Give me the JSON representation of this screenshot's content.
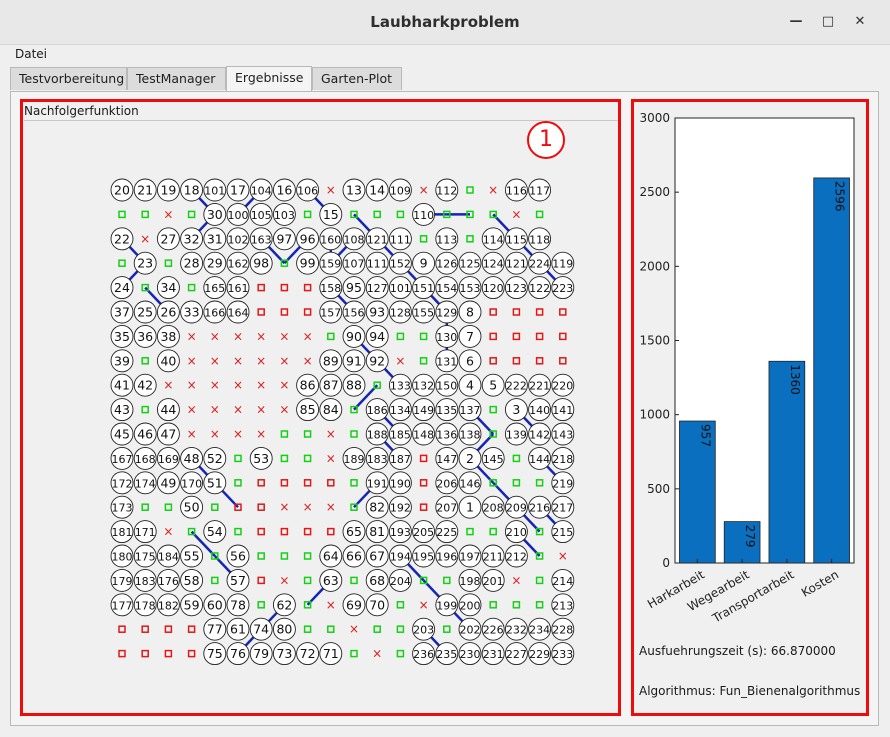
{
  "window": {
    "title": "Laubharkproblem",
    "minimize": "—",
    "maximize": "□",
    "close": "✕"
  },
  "menu": {
    "file": "Datei"
  },
  "tabs": [
    {
      "label": "Testvorbereitung",
      "active": false
    },
    {
      "label": "TestManager",
      "active": false
    },
    {
      "label": "Ergebnisse",
      "active": true
    },
    {
      "label": "Garten-Plot",
      "active": false
    }
  ],
  "left_panel": {
    "group_title": "Nachfolgerfunktion",
    "badge": "1"
  },
  "right_panel": {
    "badge": "2"
  },
  "grid": {
    "rows": [
      [
        "20",
        "21",
        "19",
        "18",
        "101",
        "17",
        "104",
        "16",
        "106",
        "x",
        "13",
        "14",
        "109",
        "x",
        "112",
        "g",
        "x",
        "116",
        "117"
      ],
      [
        "g",
        "g",
        "x",
        "g",
        "30",
        "100",
        "105",
        "103",
        "g",
        "15",
        "g",
        "g",
        "g",
        "110",
        "g",
        "g",
        "g",
        "x",
        "g"
      ],
      [
        "22",
        "x",
        "27",
        "32",
        "31",
        "102",
        "163",
        "97",
        "96",
        "160",
        "108",
        "121",
        "111",
        "g",
        "113",
        "g",
        "114",
        "115",
        "118"
      ],
      [
        "g",
        "23",
        "g",
        "28",
        "29",
        "162",
        "98",
        "g",
        "99",
        "159",
        "107",
        "111",
        "152",
        "9",
        "126",
        "125",
        "124",
        "121",
        "224",
        "119"
      ],
      [
        "24",
        "g",
        "34",
        "g",
        "165",
        "161",
        "r",
        "r",
        "r",
        "158",
        "95",
        "127",
        "101",
        "151",
        "154",
        "153",
        "120",
        "123",
        "122",
        "223"
      ],
      [
        "37",
        "25",
        "26",
        "33",
        "166",
        "164",
        "r",
        "r",
        "r",
        "157",
        "156",
        "93",
        "128",
        "155",
        "129",
        "8",
        "r",
        "r",
        "r",
        "r"
      ],
      [
        "35",
        "36",
        "38",
        "x",
        "x",
        "x",
        "x",
        "x",
        "x",
        "g",
        "90",
        "94",
        "g",
        "g",
        "130",
        "7",
        "r",
        "r",
        "r",
        "r"
      ],
      [
        "39",
        "g",
        "40",
        "x",
        "x",
        "x",
        "x",
        "x",
        "x",
        "89",
        "91",
        "92",
        "x",
        "g",
        "131",
        "6",
        "r",
        "r",
        "r",
        "r"
      ],
      [
        "41",
        "42",
        "x",
        "x",
        "x",
        "x",
        "x",
        "x",
        "86",
        "87",
        "88",
        "g",
        "133",
        "132",
        "150",
        "4",
        "5",
        "222",
        "221",
        "220"
      ],
      [
        "43",
        "g",
        "44",
        "x",
        "x",
        "x",
        "x",
        "x",
        "85",
        "84",
        "g",
        "186",
        "134",
        "149",
        "135",
        "137",
        "g",
        "3",
        "140",
        "141"
      ],
      [
        "45",
        "46",
        "47",
        "x",
        "x",
        "x",
        "x",
        "g",
        "g",
        "x",
        "g",
        "188",
        "185",
        "148",
        "136",
        "138",
        "g",
        "139",
        "142",
        "143"
      ],
      [
        "167",
        "168",
        "169",
        "48",
        "52",
        "g",
        "53",
        "g",
        "g",
        "x",
        "189",
        "183",
        "187",
        "r",
        "147",
        "2",
        "145",
        "g",
        "144",
        "218"
      ],
      [
        "172",
        "174",
        "49",
        "170",
        "51",
        "g",
        "r",
        "r",
        "r",
        "r",
        "g",
        "191",
        "190",
        "r",
        "206",
        "146",
        "g",
        "g",
        "g",
        "219"
      ],
      [
        "173",
        "g",
        "g",
        "50",
        "g",
        "r",
        "r",
        "x",
        "x",
        "x",
        "g",
        "82",
        "192",
        "r",
        "207",
        "1",
        "208",
        "209",
        "216",
        "217"
      ],
      [
        "181",
        "171",
        "x",
        "g",
        "54",
        "g",
        "r",
        "r",
        "r",
        "r",
        "65",
        "81",
        "193",
        "205",
        "225",
        "g",
        "g",
        "210",
        "g",
        "215"
      ],
      [
        "180",
        "175",
        "184",
        "55",
        "g",
        "56",
        "g",
        "g",
        "g",
        "64",
        "66",
        "67",
        "194",
        "195",
        "196",
        "197",
        "211",
        "212",
        "g",
        "x"
      ],
      [
        "179",
        "183",
        "176",
        "58",
        "g",
        "57",
        "r",
        "x",
        "g",
        "63",
        "g",
        "68",
        "204",
        "g",
        "g",
        "198",
        "201",
        "x",
        "g",
        "214"
      ],
      [
        "177",
        "178",
        "182",
        "59",
        "60",
        "78",
        "g",
        "62",
        "g",
        "x",
        "69",
        "70",
        "g",
        "x",
        "199",
        "200",
        "g",
        "g",
        "g",
        "213"
      ],
      [
        "r",
        "r",
        "r",
        "r",
        "77",
        "61",
        "74",
        "80",
        "g",
        "g",
        "x",
        "g",
        "g",
        "203",
        "g",
        "202",
        "226",
        "232",
        "234",
        "228"
      ],
      [
        "r",
        "r",
        "r",
        "r",
        "75",
        "76",
        "79",
        "73",
        "72",
        "71",
        "g",
        "x",
        "g",
        "236",
        "235",
        "230",
        "231",
        "227",
        "229",
        "233"
      ]
    ]
  },
  "chart_data": {
    "type": "bar",
    "categories": [
      "Harkarbeit",
      "Wegearbeit",
      "Transportarbeit",
      "Kosten"
    ],
    "values": [
      957,
      279,
      1360,
      2596
    ],
    "ylim": [
      0,
      3000
    ],
    "yticks": [
      "0",
      "500",
      "1000",
      "1500",
      "2000",
      "2500",
      "3000"
    ],
    "bar_color": "#0a6fbf"
  },
  "info": {
    "runtime": "Ausfuehrungszeit (s): 66.870000",
    "algorithm": "Algorithmus: Fun_Bienenalgorithmus"
  }
}
